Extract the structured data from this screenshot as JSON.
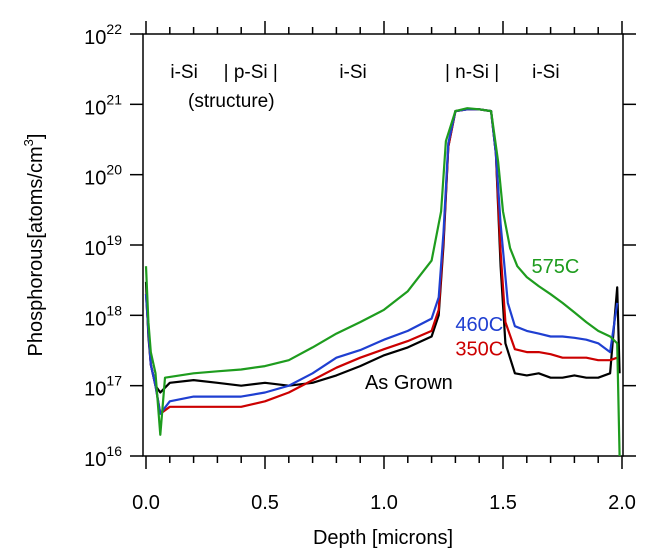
{
  "chart_data": {
    "type": "line",
    "title": "",
    "xlabel": "Depth [microns]",
    "ylabel": {
      "main": "Phosphorous[atoms/cm",
      "sup": "3",
      "close": "]"
    },
    "xlim": [
      0,
      2.0
    ],
    "ylim": [
      1e+16,
      1e+22
    ],
    "yscale": "log",
    "grid": false,
    "x_ticks": [
      {
        "value": 0.0,
        "label": "0.0"
      },
      {
        "value": 0.5,
        "label": "0.5"
      },
      {
        "value": 1.0,
        "label": "1.0"
      },
      {
        "value": 1.5,
        "label": "1.5"
      },
      {
        "value": 2.0,
        "label": "2.0"
      }
    ],
    "y_ticks": [
      {
        "value": 1e+16,
        "base": "10",
        "exp": "16"
      },
      {
        "value": 1e+17,
        "base": "10",
        "exp": "17"
      },
      {
        "value": 1e+18,
        "base": "10",
        "exp": "18"
      },
      {
        "value": 1e+19,
        "base": "10",
        "exp": "19"
      },
      {
        "value": 1e+20,
        "base": "10",
        "exp": "20"
      },
      {
        "value": 1e+21,
        "base": "10",
        "exp": "21"
      },
      {
        "value": 1e+22,
        "base": "10",
        "exp": "22"
      }
    ],
    "structure_labels": [
      {
        "text": "i-Si",
        "x": 0.16
      },
      {
        "text": "| p-Si |",
        "x": 0.44
      },
      {
        "text": "i-Si",
        "x": 0.87
      },
      {
        "text": "| n-Si |",
        "x": 1.37
      },
      {
        "text": "i-Si",
        "x": 1.68
      }
    ],
    "structure_note": "(structure)",
    "series": [
      {
        "name": "As Grown",
        "color": "#000000",
        "label_x": 0.92,
        "label_y": 9e+16,
        "points": [
          [
            0.0,
            3e+18
          ],
          [
            0.01,
            5e+17
          ],
          [
            0.02,
            2e+17
          ],
          [
            0.04,
            1e+17
          ],
          [
            0.06,
            8e+16
          ],
          [
            0.1,
            1.1e+17
          ],
          [
            0.2,
            1.2e+17
          ],
          [
            0.3,
            1.1e+17
          ],
          [
            0.4,
            1e+17
          ],
          [
            0.5,
            1.1e+17
          ],
          [
            0.6,
            1e+17
          ],
          [
            0.7,
            1.1e+17
          ],
          [
            0.8,
            1.4e+17
          ],
          [
            0.9,
            1.9e+17
          ],
          [
            1.0,
            2.7e+17
          ],
          [
            1.1,
            3.5e+17
          ],
          [
            1.2,
            5e+17
          ],
          [
            1.23,
            1e+18
          ],
          [
            1.25,
            1e+19
          ],
          [
            1.27,
            2.5e+20
          ],
          [
            1.3,
            8e+20
          ],
          [
            1.35,
            8.5e+20
          ],
          [
            1.4,
            8.5e+20
          ],
          [
            1.45,
            8e+20
          ],
          [
            1.47,
            2e+20
          ],
          [
            1.49,
            5e+18
          ],
          [
            1.51,
            4e+17
          ],
          [
            1.55,
            1.5e+17
          ],
          [
            1.6,
            1.4e+17
          ],
          [
            1.65,
            1.5e+17
          ],
          [
            1.7,
            1.3e+17
          ],
          [
            1.75,
            1.3e+17
          ],
          [
            1.8,
            1.4e+17
          ],
          [
            1.85,
            1.3e+17
          ],
          [
            1.9,
            1.3e+17
          ],
          [
            1.95,
            1.5e+17
          ],
          [
            1.98,
            2.5e+18
          ],
          [
            1.99,
            1.5e+17
          ]
        ]
      },
      {
        "name": "350C",
        "color": "#cc0000",
        "label_x": 1.3,
        "label_y": 2.7e+17,
        "points": [
          [
            0.0,
            2e+18
          ],
          [
            0.01,
            6e+17
          ],
          [
            0.02,
            2e+17
          ],
          [
            0.04,
            1e+17
          ],
          [
            0.06,
            4e+16
          ],
          [
            0.1,
            5e+16
          ],
          [
            0.2,
            5e+16
          ],
          [
            0.3,
            5e+16
          ],
          [
            0.4,
            5e+16
          ],
          [
            0.5,
            6e+16
          ],
          [
            0.6,
            8e+16
          ],
          [
            0.7,
            1.2e+17
          ],
          [
            0.8,
            1.8e+17
          ],
          [
            0.9,
            2.5e+17
          ],
          [
            1.0,
            3.3e+17
          ],
          [
            1.1,
            4.3e+17
          ],
          [
            1.2,
            6e+17
          ],
          [
            1.23,
            1.2e+18
          ],
          [
            1.25,
            1.2e+19
          ],
          [
            1.27,
            2.5e+20
          ],
          [
            1.3,
            8e+20
          ],
          [
            1.35,
            8.5e+20
          ],
          [
            1.4,
            8.5e+20
          ],
          [
            1.45,
            8e+20
          ],
          [
            1.47,
            2e+20
          ],
          [
            1.49,
            8e+18
          ],
          [
            1.51,
            8e+17
          ],
          [
            1.55,
            3.3e+17
          ],
          [
            1.6,
            3e+17
          ],
          [
            1.65,
            3e+17
          ],
          [
            1.7,
            2.8e+17
          ],
          [
            1.75,
            2.5e+17
          ],
          [
            1.8,
            2.5e+17
          ],
          [
            1.85,
            2.5e+17
          ],
          [
            1.9,
            2.3e+17
          ],
          [
            1.95,
            2.3e+17
          ],
          [
            1.98,
            2.5e+17
          ]
        ]
      },
      {
        "name": "460C",
        "color": "#1f3fd1",
        "label_x": 1.3,
        "label_y": 6e+17,
        "points": [
          [
            0.0,
            2e+18
          ],
          [
            0.01,
            6e+17
          ],
          [
            0.02,
            2e+17
          ],
          [
            0.04,
            1e+17
          ],
          [
            0.06,
            4e+16
          ],
          [
            0.1,
            6e+16
          ],
          [
            0.2,
            7e+16
          ],
          [
            0.3,
            7e+16
          ],
          [
            0.4,
            7e+16
          ],
          [
            0.5,
            8e+16
          ],
          [
            0.6,
            1e+17
          ],
          [
            0.7,
            1.5e+17
          ],
          [
            0.8,
            2.5e+17
          ],
          [
            0.9,
            3.2e+17
          ],
          [
            1.0,
            4.5e+17
          ],
          [
            1.1,
            6e+17
          ],
          [
            1.2,
            9e+17
          ],
          [
            1.23,
            1.8e+18
          ],
          [
            1.25,
            1.5e+19
          ],
          [
            1.27,
            2.8e+20
          ],
          [
            1.3,
            8e+20
          ],
          [
            1.35,
            8.5e+20
          ],
          [
            1.4,
            8.5e+20
          ],
          [
            1.45,
            8e+20
          ],
          [
            1.47,
            2e+20
          ],
          [
            1.49,
            2e+19
          ],
          [
            1.52,
            1.5e+18
          ],
          [
            1.55,
            7e+17
          ],
          [
            1.6,
            6e+17
          ],
          [
            1.65,
            5.5e+17
          ],
          [
            1.7,
            5e+17
          ],
          [
            1.75,
            5e+17
          ],
          [
            1.8,
            4.8e+17
          ],
          [
            1.85,
            4.5e+17
          ],
          [
            1.9,
            4e+17
          ],
          [
            1.95,
            3e+17
          ],
          [
            1.98,
            1.5e+18
          ]
        ]
      },
      {
        "name": "575C",
        "color": "#1e9c1e",
        "label_x": 1.62,
        "label_y": 4e+18,
        "points": [
          [
            0.0,
            5e+18
          ],
          [
            0.01,
            8e+17
          ],
          [
            0.02,
            3e+17
          ],
          [
            0.04,
            1.5e+17
          ],
          [
            0.06,
            2e+16
          ],
          [
            0.08,
            1.3e+17
          ],
          [
            0.2,
            1.5e+17
          ],
          [
            0.3,
            1.6e+17
          ],
          [
            0.4,
            1.7e+17
          ],
          [
            0.5,
            1.9e+17
          ],
          [
            0.6,
            2.3e+17
          ],
          [
            0.7,
            3.5e+17
          ],
          [
            0.8,
            5.5e+17
          ],
          [
            0.9,
            8e+17
          ],
          [
            1.0,
            1.2e+18
          ],
          [
            1.1,
            2.2e+18
          ],
          [
            1.2,
            6e+18
          ],
          [
            1.24,
            3e+19
          ],
          [
            1.26,
            3e+20
          ],
          [
            1.3,
            8e+20
          ],
          [
            1.35,
            8.8e+20
          ],
          [
            1.4,
            8.5e+20
          ],
          [
            1.45,
            8e+20
          ],
          [
            1.48,
            1.5e+20
          ],
          [
            1.5,
            3e+19
          ],
          [
            1.53,
            9e+18
          ],
          [
            1.56,
            5e+18
          ],
          [
            1.6,
            3.5e+18
          ],
          [
            1.65,
            2.6e+18
          ],
          [
            1.7,
            2e+18
          ],
          [
            1.75,
            1.5e+18
          ],
          [
            1.8,
            1.1e+18
          ],
          [
            1.85,
            8e+17
          ],
          [
            1.9,
            6e+17
          ],
          [
            1.95,
            5e+17
          ],
          [
            1.98,
            4e+17
          ],
          [
            1.99,
            1e+16
          ]
        ]
      }
    ]
  }
}
